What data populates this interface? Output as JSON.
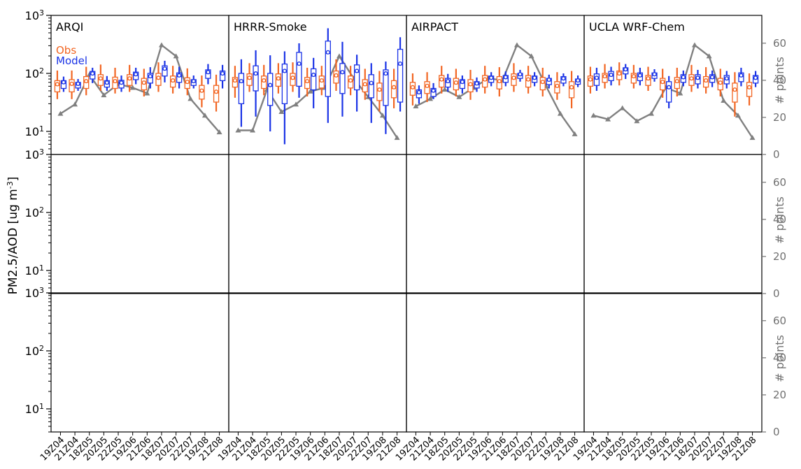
{
  "figure": {
    "ylabel": "PM2.5/AOD [ug m",
    "ylabel_sup": "-3",
    "ylabel_end": "]",
    "y2label": "# points",
    "legend": {
      "obs": "Obs",
      "model": "Model"
    }
  },
  "chart_data": {
    "type": "box",
    "y_scale": "log",
    "ylim": [
      4,
      1000
    ],
    "y_ticks": [
      {
        "base": "10",
        "exp": "1",
        "value": 10
      },
      {
        "base": "10",
        "exp": "2",
        "value": 100
      },
      {
        "base": "10",
        "exp": "3",
        "value": 1000
      }
    ],
    "y2lim": [
      0,
      75
    ],
    "y2_ticks": [
      "0",
      "20",
      "40",
      "60"
    ],
    "categories": [
      "19Z04",
      "21Z04",
      "18Z05",
      "20Z05",
      "22Z05",
      "19Z06",
      "21Z06",
      "18Z07",
      "20Z07",
      "22Z07",
      "19Z08",
      "21Z08"
    ],
    "colors": {
      "obs": "#f26522",
      "model": "#1a33e6",
      "points": "#808080"
    },
    "panels": [
      {
        "name": "ARQI",
        "obs": [
          [
            36,
            48,
            62,
            75,
            112
          ],
          [
            36,
            48,
            63,
            78,
            112
          ],
          [
            42,
            55,
            70,
            88,
            130
          ],
          [
            50,
            62,
            78,
            95,
            142
          ],
          [
            45,
            55,
            70,
            86,
            125
          ],
          [
            48,
            62,
            78,
            95,
            140
          ],
          [
            40,
            52,
            66,
            82,
            120
          ],
          [
            48,
            62,
            80,
            100,
            155
          ],
          [
            45,
            58,
            72,
            90,
            135
          ],
          [
            42,
            55,
            68,
            84,
            122
          ],
          [
            26,
            36,
            48,
            62,
            92
          ],
          [
            22,
            32,
            46,
            62,
            95
          ]
        ],
        "model": [
          [
            48,
            55,
            67,
            75,
            88
          ],
          [
            50,
            56,
            63,
            70,
            80
          ],
          [
            68,
            80,
            95,
            108,
            125
          ],
          [
            50,
            58,
            66,
            75,
            90
          ],
          [
            48,
            56,
            66,
            76,
            92
          ],
          [
            65,
            78,
            92,
            105,
            125
          ],
          [
            55,
            68,
            85,
            100,
            128
          ],
          [
            70,
            90,
            115,
            135,
            165
          ],
          [
            55,
            70,
            88,
            102,
            130
          ],
          [
            55,
            62,
            70,
            78,
            92
          ],
          [
            65,
            82,
            100,
            115,
            145
          ],
          [
            55,
            75,
            95,
            110,
            140
          ]
        ],
        "points": [
          22,
          27,
          43,
          32,
          38,
          36,
          33,
          59,
          53,
          30,
          21,
          12
        ]
      },
      {
        "name": "HRRR-Smoke",
        "obs": [
          [
            38,
            58,
            72,
            85,
            135
          ],
          [
            48,
            62,
            80,
            98,
            150
          ],
          [
            42,
            55,
            72,
            90,
            140
          ],
          [
            45,
            60,
            78,
            98,
            150
          ],
          [
            48,
            62,
            80,
            100,
            155
          ],
          [
            40,
            55,
            70,
            85,
            125
          ],
          [
            42,
            56,
            72,
            90,
            135
          ],
          [
            50,
            68,
            88,
            110,
            175
          ],
          [
            42,
            56,
            72,
            90,
            135
          ],
          [
            35,
            48,
            62,
            78,
            120
          ],
          [
            22,
            34,
            50,
            68,
            110
          ],
          [
            25,
            38,
            55,
            75,
            120
          ]
        ],
        "model": [
          [
            12,
            30,
            70,
            100,
            175
          ],
          [
            18,
            50,
            95,
            135,
            250
          ],
          [
            10,
            28,
            60,
            100,
            205
          ],
          [
            6,
            30,
            105,
            145,
            240
          ],
          [
            38,
            60,
            140,
            230,
            330
          ],
          [
            25,
            52,
            90,
            120,
            185
          ],
          [
            14,
            40,
            220,
            360,
            600
          ],
          [
            18,
            45,
            100,
            148,
            350
          ],
          [
            22,
            52,
            105,
            140,
            210
          ],
          [
            14,
            38,
            65,
            95,
            150
          ],
          [
            9,
            28,
            95,
            115,
            160
          ],
          [
            22,
            32,
            140,
            260,
            420
          ]
        ],
        "points": [
          13,
          13,
          35,
          23,
          27,
          34,
          36,
          53,
          41,
          31,
          21,
          9
        ]
      },
      {
        "name": "AIRPACT",
        "obs": [
          [
            28,
            42,
            55,
            70,
            100
          ],
          [
            32,
            45,
            58,
            72,
            105
          ],
          [
            45,
            58,
            75,
            92,
            135
          ],
          [
            40,
            52,
            66,
            82,
            120
          ],
          [
            35,
            48,
            62,
            78,
            115
          ],
          [
            45,
            58,
            75,
            92,
            135
          ],
          [
            40,
            54,
            70,
            88,
            128
          ],
          [
            48,
            62,
            80,
            98,
            150
          ],
          [
            45,
            58,
            75,
            92,
            135
          ],
          [
            40,
            52,
            68,
            85,
            125
          ],
          [
            35,
            46,
            58,
            72,
            105
          ],
          [
            25,
            38,
            55,
            72,
            110
          ]
        ],
        "model": [
          [
            30,
            38,
            45,
            52,
            62
          ],
          [
            36,
            40,
            48,
            55,
            68
          ],
          [
            48,
            58,
            70,
            82,
            98
          ],
          [
            45,
            55,
            68,
            78,
            92
          ],
          [
            48,
            56,
            64,
            72,
            85
          ],
          [
            60,
            70,
            80,
            90,
            105
          ],
          [
            60,
            70,
            82,
            92,
            108
          ],
          [
            72,
            82,
            92,
            100,
            115
          ],
          [
            60,
            70,
            80,
            90,
            105
          ],
          [
            55,
            64,
            74,
            82,
            95
          ],
          [
            60,
            68,
            78,
            88,
            100
          ],
          [
            58,
            65,
            72,
            80,
            92
          ]
        ],
        "points": [
          26,
          30,
          35,
          31,
          36,
          41,
          40,
          59,
          53,
          37,
          22,
          11
        ]
      },
      {
        "name": "UCLA WRF-Chem",
        "obs": [
          [
            45,
            60,
            75,
            90,
            130
          ],
          [
            55,
            70,
            85,
            100,
            145
          ],
          [
            62,
            78,
            95,
            110,
            155
          ],
          [
            55,
            68,
            85,
            100,
            140
          ],
          [
            50,
            62,
            78,
            92,
            130
          ],
          [
            38,
            52,
            68,
            82,
            120
          ],
          [
            40,
            55,
            70,
            85,
            125
          ],
          [
            48,
            62,
            78,
            95,
            140
          ],
          [
            45,
            58,
            72,
            88,
            128
          ],
          [
            40,
            52,
            66,
            82,
            120
          ],
          [
            18,
            32,
            50,
            68,
            105
          ],
          [
            28,
            40,
            55,
            70,
            100
          ]
        ],
        "model": [
          [
            50,
            62,
            80,
            98,
            125
          ],
          [
            62,
            75,
            90,
            108,
            130
          ],
          [
            80,
            98,
            112,
            125,
            145
          ],
          [
            62,
            75,
            88,
            102,
            125
          ],
          [
            72,
            82,
            92,
            102,
            118
          ],
          [
            25,
            32,
            55,
            72,
            90
          ],
          [
            60,
            70,
            82,
            95,
            112
          ],
          [
            55,
            66,
            80,
            95,
            115
          ],
          [
            58,
            70,
            82,
            95,
            112
          ],
          [
            55,
            66,
            78,
            92,
            110
          ],
          [
            60,
            72,
            88,
            102,
            125
          ],
          [
            58,
            68,
            80,
            92,
            110
          ]
        ],
        "points": [
          21,
          19,
          25,
          18,
          22,
          36,
          33,
          59,
          53,
          29,
          21,
          9
        ]
      }
    ]
  }
}
